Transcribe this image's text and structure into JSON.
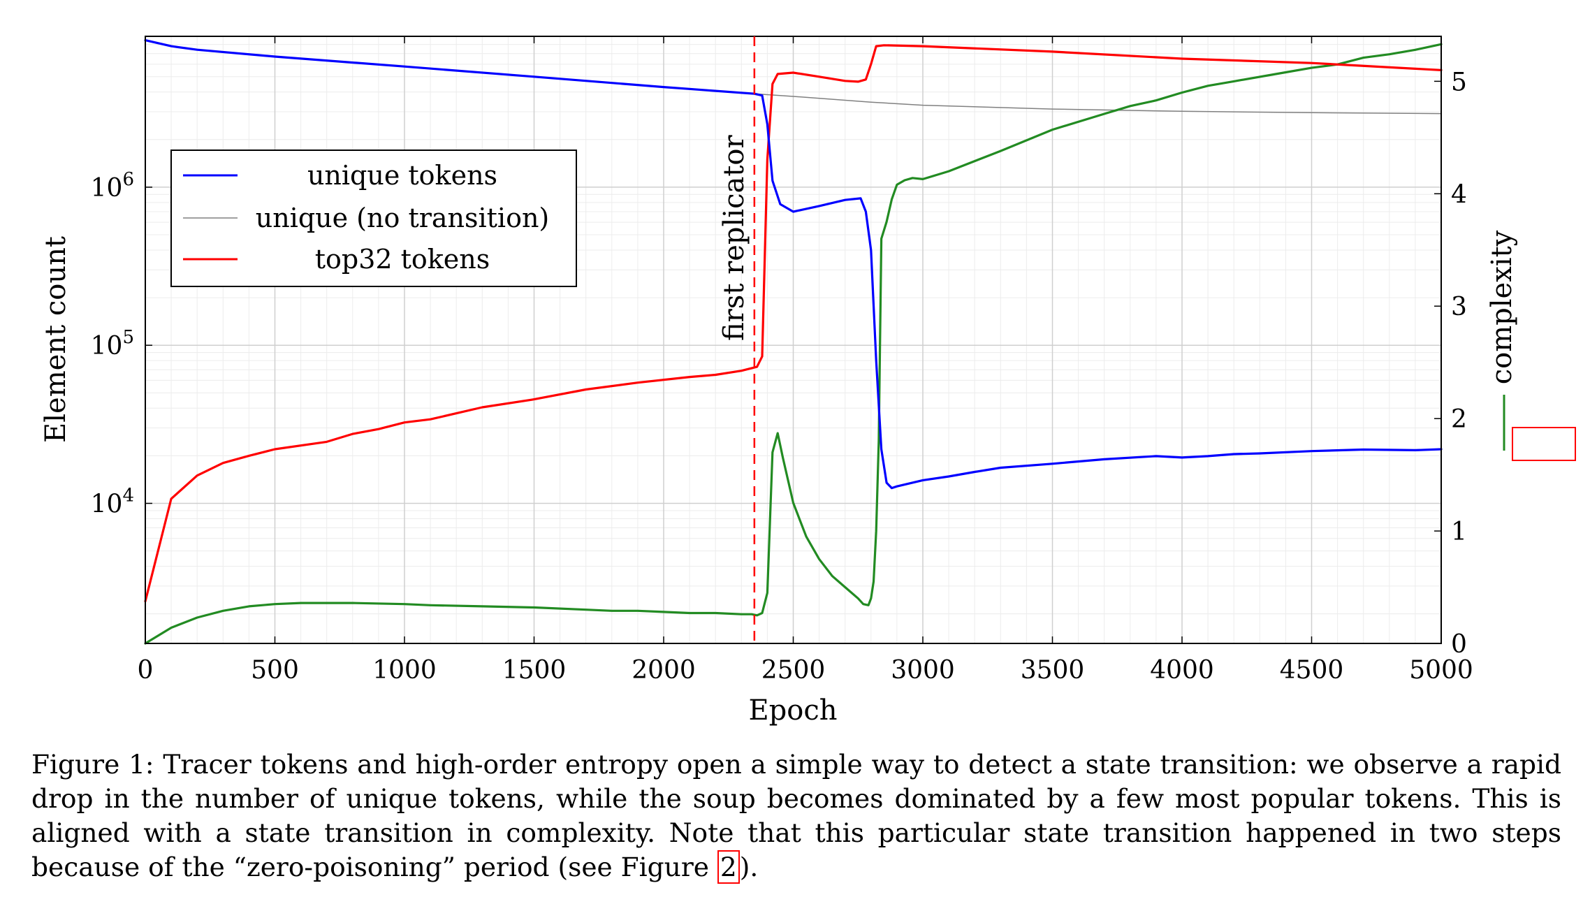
{
  "chart_data": {
    "type": "line",
    "xlabel": "Epoch",
    "ylabel_left": "Element count",
    "ylabel_right": "complexity",
    "xlim": [
      0,
      5000
    ],
    "ylim_left": [
      1300,
      9000000
    ],
    "yscale_left": "log",
    "ylim_right": [
      0,
      5.4
    ],
    "x_ticks": [
      "0",
      "500",
      "1000",
      "1500",
      "2000",
      "2500",
      "3000",
      "3500",
      "4000",
      "4500",
      "5000"
    ],
    "y_left_ticks": [
      {
        "value": 10000,
        "label": "10^4"
      },
      {
        "value": 100000,
        "label": "10^5"
      },
      {
        "value": 1000000,
        "label": "10^6"
      }
    ],
    "y_right_ticks": [
      "0",
      "1",
      "2",
      "3",
      "4",
      "5"
    ],
    "grid": true,
    "legend_placement": "upper-left",
    "annotation": {
      "x": 2350,
      "label": "first replicator",
      "color": "#ff0000"
    },
    "series": [
      {
        "name": "unique tokens",
        "axis": "left",
        "color": "#0000ff",
        "x": [
          0,
          100,
          200,
          500,
          1000,
          1500,
          2000,
          2350,
          2380,
          2400,
          2420,
          2450,
          2500,
          2600,
          2700,
          2760,
          2780,
          2800,
          2820,
          2840,
          2860,
          2880,
          2900,
          3000,
          3100,
          3200,
          3300,
          3500,
          3700,
          3900,
          4000,
          4100,
          4200,
          4300,
          4500,
          4700,
          4900,
          5000
        ],
        "values": [
          8500000,
          7800000,
          7400000,
          6700000,
          5800000,
          5000000,
          4300000,
          3900000,
          3800000,
          2500000,
          1100000,
          780000,
          700000,
          760000,
          830000,
          850000,
          700000,
          400000,
          80000,
          22000,
          13500,
          12500,
          12800,
          14000,
          14800,
          15800,
          16800,
          17800,
          19000,
          19900,
          19500,
          19900,
          20500,
          20700,
          21400,
          21900,
          21700,
          22000
        ]
      },
      {
        "name": "unique (no transition)",
        "axis": "left",
        "color": "#808080",
        "x": [
          0,
          100,
          200,
          500,
          1000,
          1500,
          2000,
          2350,
          2500,
          2800,
          3000,
          3500,
          4000,
          4500,
          5000
        ],
        "values": [
          8500000,
          7800000,
          7400000,
          6700000,
          5800000,
          5000000,
          4300000,
          3900000,
          3750000,
          3450000,
          3300000,
          3120000,
          3020000,
          2960000,
          2920000
        ]
      },
      {
        "name": "top32 tokens",
        "axis": "left",
        "color": "#ff0000",
        "x": [
          0,
          100,
          200,
          300,
          400,
          500,
          700,
          800,
          900,
          1000,
          1100,
          1300,
          1500,
          1700,
          1900,
          2100,
          2200,
          2300,
          2360,
          2380,
          2400,
          2420,
          2440,
          2500,
          2600,
          2700,
          2750,
          2780,
          2800,
          2820,
          2850,
          3000,
          3500,
          4000,
          4500,
          5000
        ],
        "values": [
          2400,
          10700,
          15000,
          18000,
          20000,
          22000,
          24500,
          27500,
          29500,
          32500,
          34000,
          40500,
          45500,
          52500,
          58000,
          63000,
          65000,
          69000,
          73000,
          85000,
          1500000,
          4500000,
          5200000,
          5300000,
          5000000,
          4700000,
          4650000,
          4800000,
          6000000,
          7800000,
          7900000,
          7800000,
          7200000,
          6500000,
          6100000,
          5500000
        ]
      },
      {
        "name": "complexity",
        "axis": "right",
        "color": "#228b22",
        "x": [
          0,
          100,
          200,
          300,
          400,
          500,
          600,
          700,
          800,
          1000,
          1100,
          1300,
          1500,
          1700,
          1800,
          1900,
          2000,
          2100,
          2200,
          2300,
          2340,
          2360,
          2380,
          2400,
          2420,
          2440,
          2460,
          2500,
          2550,
          2600,
          2650,
          2700,
          2750,
          2770,
          2790,
          2800,
          2810,
          2820,
          2830,
          2840,
          2860,
          2880,
          2900,
          2930,
          2960,
          3000,
          3100,
          3300,
          3500,
          3700,
          3800,
          3900,
          4000,
          4100,
          4200,
          4400,
          4500,
          4600,
          4700,
          4800,
          4900,
          5000
        ],
        "values": [
          0.0,
          0.14,
          0.23,
          0.29,
          0.33,
          0.35,
          0.36,
          0.36,
          0.36,
          0.35,
          0.34,
          0.33,
          0.32,
          0.3,
          0.29,
          0.29,
          0.28,
          0.27,
          0.27,
          0.26,
          0.26,
          0.25,
          0.27,
          0.45,
          1.7,
          1.87,
          1.65,
          1.25,
          0.95,
          0.75,
          0.6,
          0.5,
          0.4,
          0.35,
          0.34,
          0.4,
          0.55,
          1.0,
          1.8,
          3.6,
          3.75,
          3.95,
          4.08,
          4.12,
          4.14,
          4.13,
          4.2,
          4.38,
          4.57,
          4.71,
          4.78,
          4.83,
          4.9,
          4.96,
          5.0,
          5.08,
          5.12,
          5.15,
          5.21,
          5.24,
          5.28,
          5.33
        ]
      }
    ]
  },
  "legend": {
    "items": [
      {
        "label": "unique tokens",
        "color": "#0000ff"
      },
      {
        "label": "unique (no transition)",
        "color": "#808080"
      },
      {
        "label": "top32 tokens",
        "color": "#ff0000"
      }
    ]
  },
  "caption": {
    "text": "Figure 1: Tracer tokens and high-order entropy open a simple way to detect a state transition: we observe a rapid drop in the number of unique tokens, while the soup becomes dominated by a few most popular tokens. This is aligned with a state transition in complexity. Note that this particular state transition happened in two steps because of the “zero-poisoning” period (see Figure ",
    "ref": "2",
    "tail": ")."
  }
}
